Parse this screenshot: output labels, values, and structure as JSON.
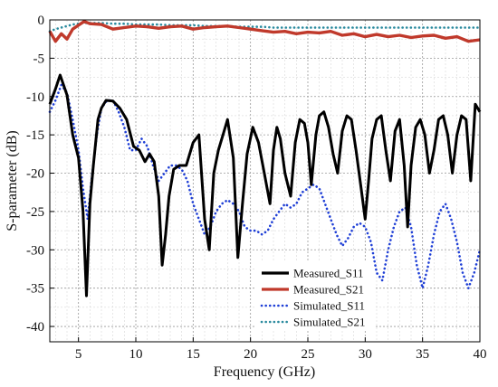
{
  "chart_data": {
    "type": "line",
    "xlabel": "Frequency (GHz)",
    "ylabel": "S-parameter (dB)",
    "xlim": [
      2.5,
      40
    ],
    "ylim": [
      -42,
      0
    ],
    "x_ticks": [
      5,
      10,
      15,
      20,
      25,
      30,
      35,
      40
    ],
    "y_ticks": [
      0,
      -5,
      -10,
      -15,
      -20,
      -25,
      -30,
      -35,
      -40
    ],
    "grid": true,
    "legend_position": "bottom-right",
    "series": [
      {
        "name": "Measured_S11",
        "color": "#000000",
        "style": "solid",
        "x": [
          2.5,
          3.0,
          3.4,
          3.7,
          4.0,
          4.5,
          5.0,
          5.4,
          5.7,
          6.0,
          6.3,
          6.7,
          7.0,
          7.4,
          8.0,
          8.6,
          9.2,
          9.8,
          10.3,
          10.8,
          11.2,
          11.6,
          12.0,
          12.3,
          12.6,
          12.9,
          13.3,
          13.8,
          14.4,
          15.0,
          15.5,
          16.0,
          16.4,
          16.8,
          17.2,
          17.6,
          18.0,
          18.5,
          18.9,
          19.3,
          19.7,
          20.2,
          20.7,
          21.2,
          21.7,
          22.0,
          22.3,
          22.6,
          23.0,
          23.5,
          23.9,
          24.3,
          24.7,
          25.0,
          25.3,
          25.7,
          26.0,
          26.4,
          26.8,
          27.2,
          27.6,
          28.0,
          28.4,
          28.8,
          29.2,
          29.6,
          30.0,
          30.3,
          30.6,
          31.0,
          31.4,
          31.8,
          32.2,
          32.6,
          33.0,
          33.4,
          33.7,
          34.0,
          34.4,
          34.8,
          35.2,
          35.6,
          36.0,
          36.4,
          36.8,
          37.2,
          37.6,
          38.0,
          38.4,
          38.8,
          39.2,
          39.6,
          40.0
        ],
        "y": [
          -11,
          -9,
          -7.2,
          -8.5,
          -9.8,
          -15,
          -18,
          -25,
          -36,
          -24,
          -19,
          -13,
          -11.5,
          -10.5,
          -10.6,
          -11.5,
          -13,
          -16.5,
          -17,
          -18.5,
          -17.5,
          -18.5,
          -23,
          -32,
          -28,
          -23,
          -19.5,
          -19,
          -19,
          -16,
          -15,
          -26,
          -30,
          -20,
          -17,
          -15,
          -13,
          -18,
          -31,
          -24,
          -17.5,
          -14,
          -16,
          -20,
          -24,
          -17,
          -14,
          -15.5,
          -20,
          -23,
          -16,
          -13,
          -13.5,
          -16,
          -21.5,
          -15,
          -12.5,
          -12,
          -14,
          -17.5,
          -20,
          -14.5,
          -12.5,
          -13,
          -17,
          -21.5,
          -26,
          -21,
          -15.5,
          -13,
          -12.5,
          -17,
          -21,
          -14.5,
          -13,
          -19,
          -27,
          -19,
          -14,
          -13,
          -15,
          -20,
          -17,
          -13,
          -12.5,
          -15,
          -20,
          -15,
          -12.5,
          -13,
          -21,
          -11,
          -12
        ]
      },
      {
        "name": "Measured_S21",
        "color": "#c0392b",
        "style": "solid",
        "x": [
          2.5,
          3.0,
          3.5,
          4.0,
          4.5,
          5.0,
          5.5,
          6.0,
          7.0,
          8.0,
          9.0,
          10.0,
          11.0,
          12.0,
          13.0,
          14.0,
          15.0,
          16.0,
          17.0,
          18.0,
          19.0,
          20.0,
          21.0,
          22.0,
          23.0,
          24.0,
          25.0,
          26.0,
          27.0,
          28.0,
          29.0,
          30.0,
          31.0,
          32.0,
          33.0,
          34.0,
          35.0,
          36.0,
          37.0,
          38.0,
          39.0,
          40.0
        ],
        "y": [
          -1.5,
          -2.8,
          -1.8,
          -2.5,
          -1.2,
          -0.7,
          -0.2,
          -0.5,
          -0.6,
          -1.2,
          -1.0,
          -0.8,
          -0.9,
          -1.1,
          -0.9,
          -0.8,
          -1.2,
          -1.0,
          -0.9,
          -0.8,
          -1.0,
          -1.2,
          -1.4,
          -1.6,
          -1.5,
          -1.8,
          -1.6,
          -1.7,
          -1.5,
          -2.0,
          -1.8,
          -2.2,
          -1.9,
          -2.2,
          -2.0,
          -2.3,
          -2.1,
          -2.0,
          -2.4,
          -2.2,
          -2.8,
          -2.6
        ]
      },
      {
        "name": "Simulated_S11",
        "color": "#1f3fd6",
        "style": "dotted",
        "x": [
          2.5,
          3.0,
          3.5,
          4.0,
          4.5,
          5.0,
          5.4,
          5.8,
          6.2,
          6.6,
          7.0,
          7.5,
          8.0,
          8.5,
          9.0,
          9.5,
          10.0,
          10.5,
          11.0,
          11.5,
          12.0,
          12.5,
          13.0,
          13.5,
          14.0,
          14.5,
          15.0,
          15.5,
          16.0,
          16.5,
          17.0,
          17.5,
          18.0,
          18.5,
          19.0,
          19.5,
          20.0,
          20.5,
          21.0,
          21.5,
          22.0,
          22.5,
          23.0,
          23.5,
          24.0,
          24.5,
          25.0,
          25.5,
          26.0,
          26.5,
          27.0,
          27.5,
          28.0,
          28.5,
          29.0,
          29.5,
          30.0,
          30.5,
          31.0,
          31.5,
          32.0,
          32.5,
          33.0,
          33.5,
          34.0,
          34.5,
          35.0,
          35.5,
          36.0,
          36.5,
          37.0,
          37.5,
          38.0,
          38.5,
          39.0,
          39.5,
          40.0
        ],
        "y": [
          -12,
          -10.5,
          -8.5,
          -9.5,
          -13,
          -17,
          -22,
          -26,
          -20,
          -15,
          -11.5,
          -10.5,
          -10.5,
          -12,
          -14,
          -17,
          -17,
          -15.5,
          -16.5,
          -19,
          -21,
          -20,
          -19,
          -19,
          -19.5,
          -21,
          -24,
          -26,
          -28,
          -27,
          -25,
          -24,
          -23.5,
          -24,
          -25,
          -27,
          -27.5,
          -27.5,
          -28,
          -27.5,
          -26,
          -25,
          -24,
          -24.5,
          -24,
          -22.5,
          -22,
          -21.5,
          -22,
          -24,
          -26,
          -28,
          -29.5,
          -28.5,
          -27,
          -26.5,
          -27,
          -29,
          -33,
          -34,
          -30,
          -27,
          -25,
          -24.5,
          -27,
          -32,
          -35,
          -32,
          -28,
          -25,
          -24,
          -26,
          -29,
          -33,
          -35,
          -33,
          -30
        ]
      },
      {
        "name": "Simulated_S21",
        "color": "#2a8a9e",
        "style": "dotted",
        "x": [
          2.5,
          3.0,
          3.5,
          4.0,
          4.5,
          5.0,
          5.5,
          6.0,
          7.0,
          8.0,
          9.0,
          10.0,
          11.0,
          12.0,
          13.0,
          14.0,
          15.0,
          16.0,
          17.0,
          18.0,
          19.0,
          20.0,
          21.0,
          22.0,
          23.0,
          24.0,
          25.0,
          26.0,
          27.0,
          28.0,
          29.0,
          30.0,
          31.0,
          32.0,
          33.0,
          34.0,
          35.0,
          36.0,
          37.0,
          38.0,
          39.0,
          40.0
        ],
        "y": [
          -1.5,
          -1.2,
          -1.0,
          -0.8,
          -0.6,
          -0.5,
          -0.4,
          -0.4,
          -0.4,
          -0.5,
          -0.5,
          -0.6,
          -0.6,
          -0.6,
          -0.7,
          -0.7,
          -0.7,
          -0.8,
          -0.8,
          -0.8,
          -0.9,
          -0.9,
          -0.9,
          -1.0,
          -1.0,
          -1.0,
          -1.0,
          -1.0,
          -1.0,
          -1.0,
          -1.0,
          -1.0,
          -1.0,
          -1.0,
          -1.0,
          -1.0,
          -1.0,
          -1.0,
          -1.0,
          -1.0,
          -1.0,
          -1.0
        ]
      }
    ]
  }
}
